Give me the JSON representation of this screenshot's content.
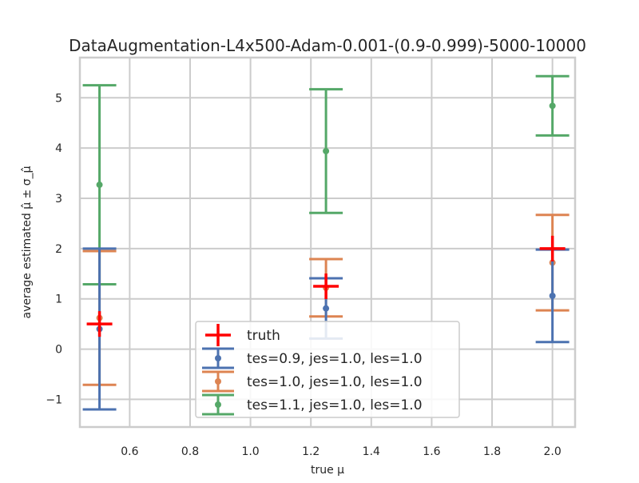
{
  "chart_data": {
    "type": "scatter",
    "title": "DataAugmentation-L4x500-Adam-0.001-(0.9-0.999)-5000-10000",
    "xlabel": "true μ",
    "ylabel": "average estimated μ̂ ± σ_μ̂",
    "xlim": [
      0.435,
      2.075
    ],
    "ylim": [
      -1.55,
      5.8
    ],
    "xticks": [
      0.6,
      0.8,
      1.0,
      1.2,
      1.4,
      1.6,
      1.8,
      2.0
    ],
    "xtick_labels": [
      "0.6",
      "0.8",
      "1.0",
      "1.2",
      "1.4",
      "1.6",
      "1.8",
      "2.0"
    ],
    "yticks": [
      -1,
      0,
      1,
      2,
      3,
      4,
      5
    ],
    "ytick_labels": [
      "−1",
      "0",
      "1",
      "2",
      "3",
      "4",
      "5"
    ],
    "grid": true,
    "legend_position": "lower-center",
    "truth": {
      "name": "truth",
      "color": "#ff0000",
      "x": [
        0.5,
        1.25,
        2.0
      ],
      "y": [
        0.5,
        1.25,
        2.0
      ]
    },
    "series": [
      {
        "name": "tes=0.9, jes=1.0, les=1.0",
        "color": "#4c72b0",
        "x": [
          0.5,
          1.25,
          2.0
        ],
        "y": [
          0.4,
          0.81,
          1.06
        ],
        "yerr": [
          1.6,
          0.6,
          0.92
        ]
      },
      {
        "name": "tes=1.0, jes=1.0, les=1.0",
        "color": "#dd8452",
        "x": [
          0.5,
          1.25,
          2.0
        ],
        "y": [
          0.62,
          1.22,
          1.72
        ],
        "yerr": [
          1.33,
          0.57,
          0.95
        ]
      },
      {
        "name": "tes=1.1, jes=1.0, les=1.0",
        "color": "#55a868",
        "x": [
          0.5,
          1.25,
          2.0
        ],
        "y": [
          3.27,
          3.94,
          4.84
        ],
        "yerr": [
          1.98,
          1.23,
          0.59
        ]
      }
    ]
  }
}
